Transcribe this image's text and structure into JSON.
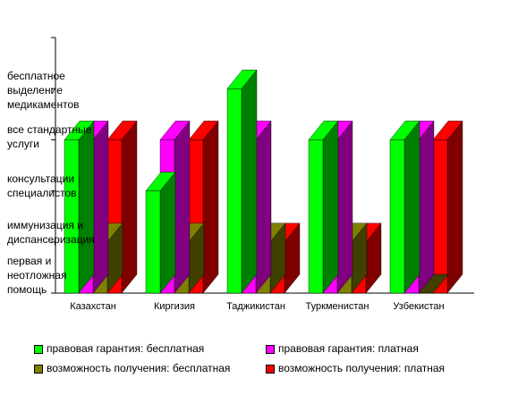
{
  "chart_data": {
    "type": "bar",
    "style": "3d-clustered",
    "categories": [
      "Казахстан",
      "Киргизия",
      "Таджикистан",
      "Туркменистан",
      "Узбекистан"
    ],
    "y_levels": [
      "первая и неотложная помощь",
      "иммунизация и диспансеризация",
      "консультации специалистов",
      "все стандартные услуги",
      "бесплатное выделение медикаментов"
    ],
    "ylim": [
      0,
      5
    ],
    "series": [
      {
        "name": "правовая гарантия: бесплатная",
        "color": "#00ff00",
        "dark": "#008000",
        "values": [
          3,
          2,
          4,
          3,
          3
        ]
      },
      {
        "name": "правовая гарантия: платная",
        "color": "#ff00ff",
        "dark": "#800080",
        "values": [
          3,
          3,
          3,
          3,
          3
        ]
      },
      {
        "name": "возможность получения: бесплатная",
        "color": "#808000",
        "dark": "#404000",
        "values": [
          1,
          1,
          1,
          1,
          0
        ]
      },
      {
        "name": "возможность получения: платная",
        "color": "#ff0000",
        "dark": "#800000",
        "values": [
          3,
          3,
          1,
          1,
          3
        ]
      }
    ],
    "grid": false,
    "legend_position": "bottom"
  }
}
